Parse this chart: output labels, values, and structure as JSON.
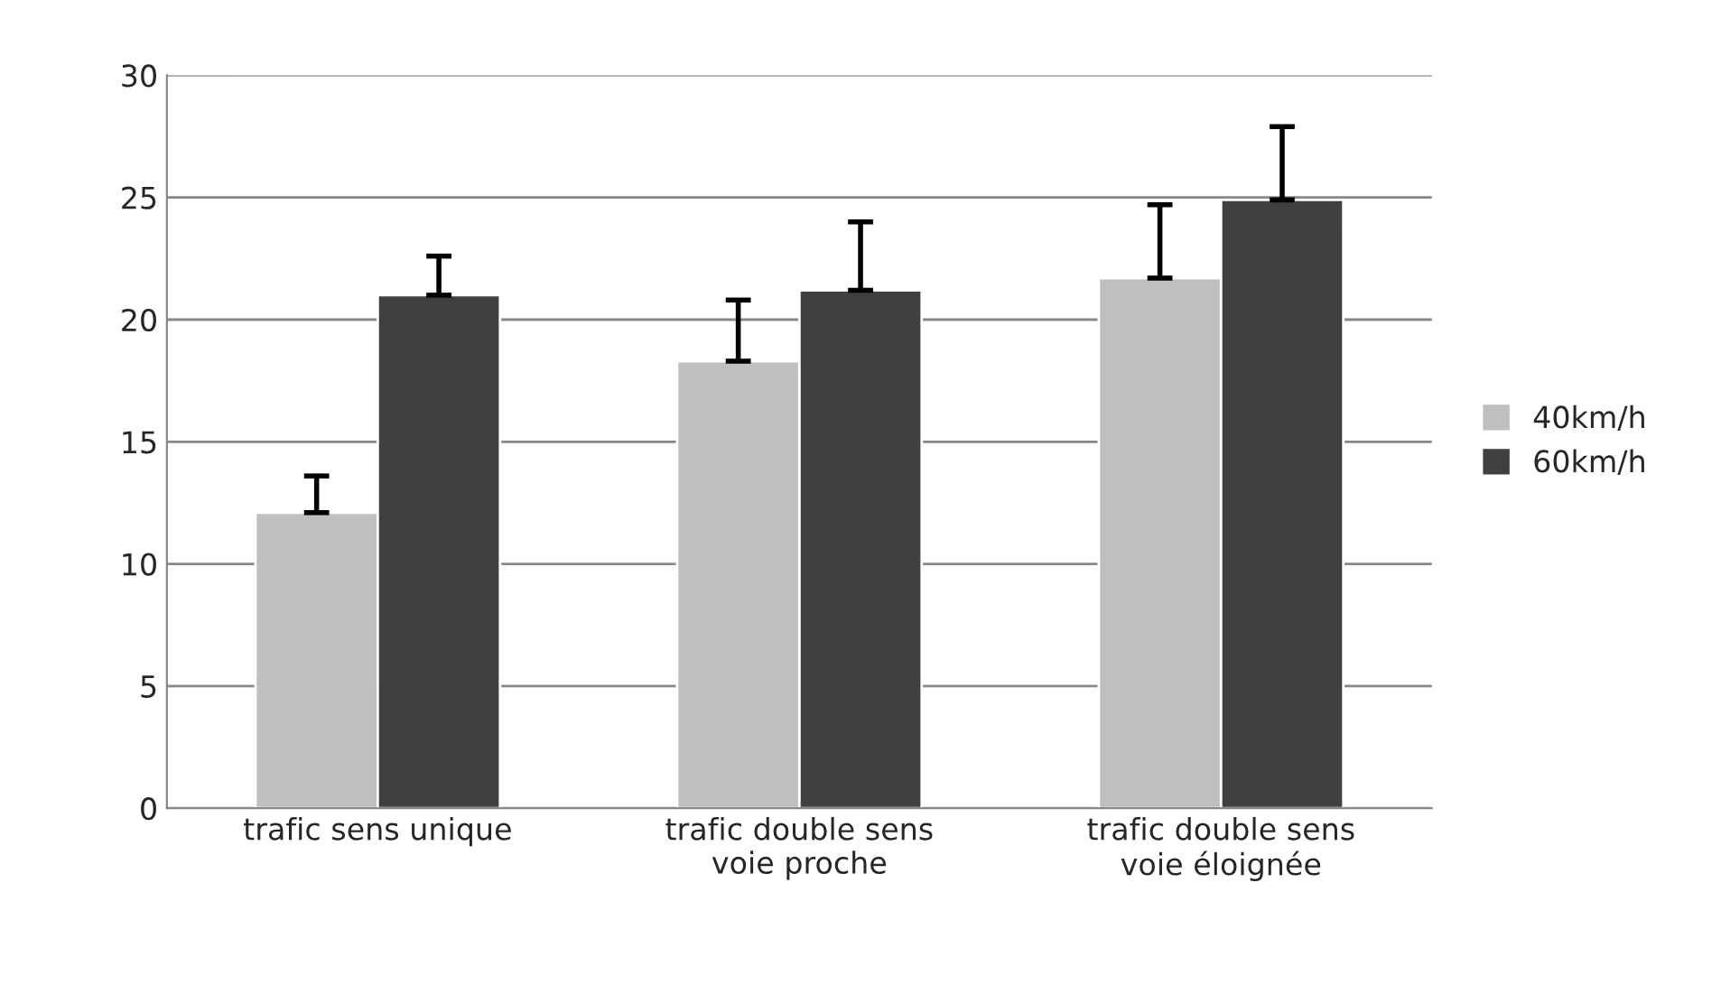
{
  "chart_data": {
    "type": "bar",
    "categories": [
      "trafic sens unique",
      "trafic double sens\nvoie proche",
      "trafic double sens\nvoie éloignée"
    ],
    "series": [
      {
        "name": "40km/h",
        "color": "#bfbfbf",
        "values": [
          12.1,
          18.3,
          21.7
        ],
        "errors": [
          [
            12.1,
            13.6
          ],
          [
            18.3,
            20.8
          ],
          [
            21.7,
            24.7
          ]
        ]
      },
      {
        "name": "60km/h",
        "color": "#404040",
        "values": [
          21.0,
          21.2,
          24.9
        ],
        "errors": [
          [
            21.0,
            22.6
          ],
          [
            21.2,
            24.0
          ],
          [
            24.9,
            27.9
          ]
        ]
      }
    ],
    "ylim": [
      0,
      30
    ],
    "yticks": [
      0,
      5,
      10,
      15,
      20,
      25,
      30
    ],
    "grid": "y",
    "legend": "right"
  }
}
